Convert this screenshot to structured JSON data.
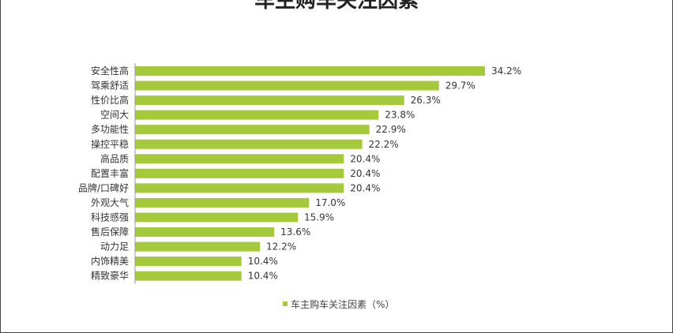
{
  "chart_data": {
    "type": "bar",
    "orientation": "horizontal",
    "title": "车主购车关注因素",
    "categories": [
      "安全性高",
      "驾乘舒适",
      "性价比高",
      "空间大",
      "多功能性",
      "操控平稳",
      "高品质",
      "配置丰富",
      "品牌/口碑好",
      "外观大气",
      "科技感强",
      "售后保障",
      "动力足",
      "内饰精美",
      "精致豪华"
    ],
    "series": [
      {
        "name": "车主购车关注因素（%）",
        "values": [
          34.2,
          29.7,
          26.3,
          23.8,
          22.9,
          22.2,
          20.4,
          20.4,
          20.4,
          17.0,
          15.9,
          13.6,
          12.2,
          10.4,
          10.4
        ],
        "value_labels": [
          "34.2%",
          "29.7%",
          "26.3%",
          "23.8%",
          "22.9%",
          "22.2%",
          "20.4%",
          "20.4%",
          "20.4%",
          "17.0%",
          "15.9%",
          "13.6%",
          "12.2%",
          "10.4%",
          "10.4%"
        ],
        "color": "#a4c93a"
      }
    ],
    "xlim": [
      0,
      34.2
    ],
    "grid": false,
    "legend_position": "bottom"
  }
}
